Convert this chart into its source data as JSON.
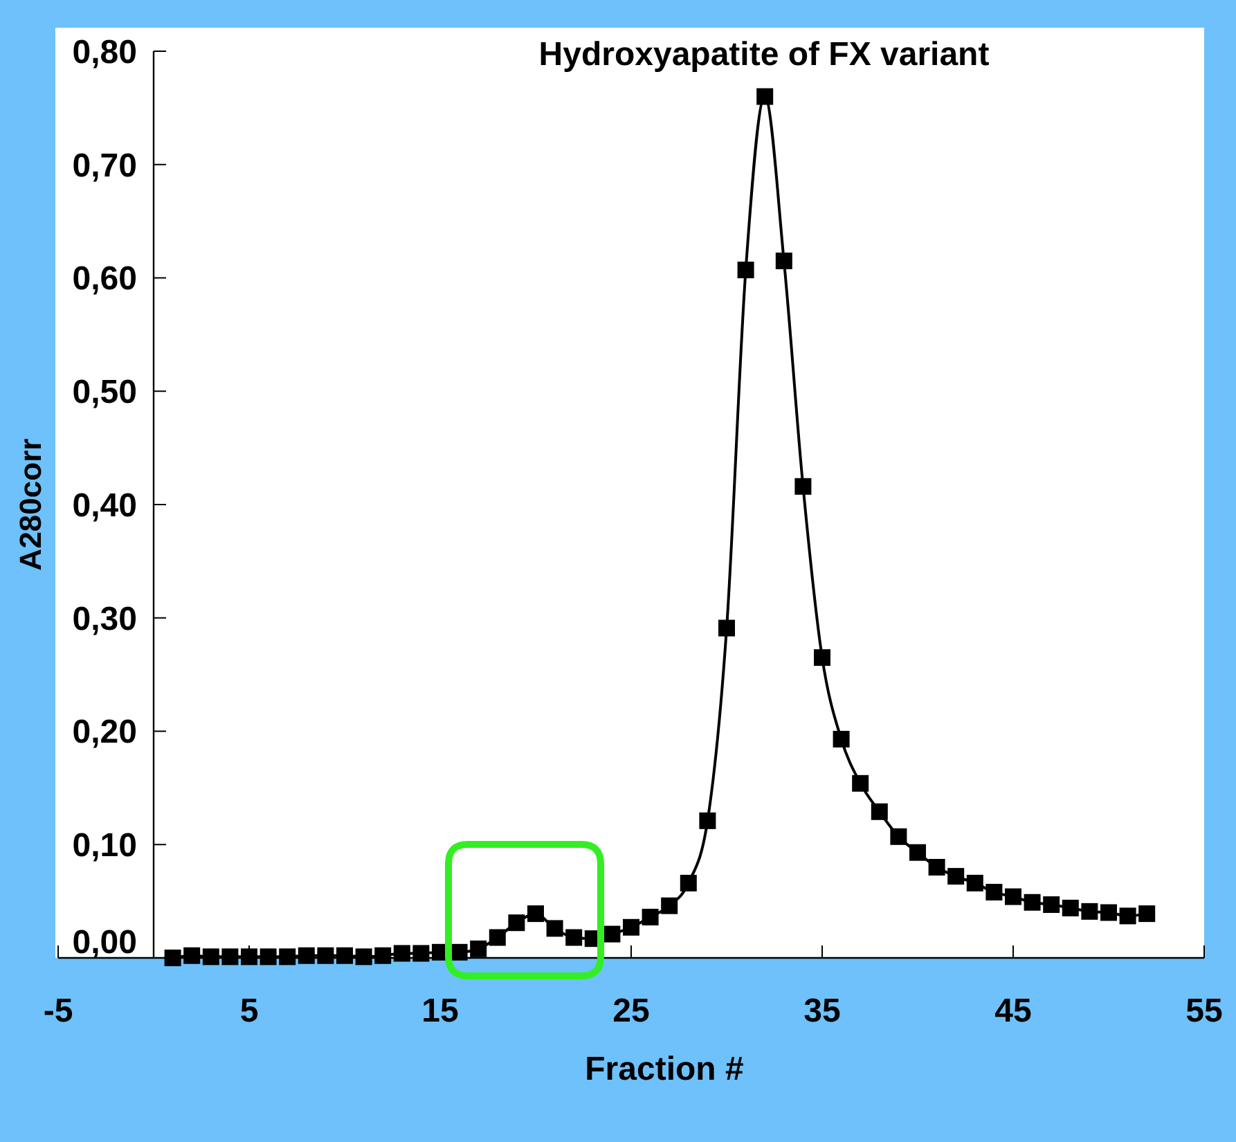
{
  "chart_data": {
    "type": "line",
    "title": "Hydroxyapatite  of FX variant",
    "xlabel": "Fraction #",
    "ylabel": "A280corr",
    "x": [
      1,
      2,
      3,
      4,
      5,
      6,
      7,
      8,
      9,
      10,
      11,
      12,
      13,
      14,
      15,
      16,
      17,
      18,
      19,
      20,
      21,
      22,
      23,
      24,
      25,
      26,
      27,
      28,
      29,
      30,
      31,
      32,
      33,
      34,
      35,
      36,
      37,
      38,
      39,
      40,
      41,
      42,
      43,
      44,
      45,
      46,
      47,
      48,
      49,
      50,
      51,
      52
    ],
    "series": [
      {
        "color": "#000000",
        "values": [
          0.0,
          0.002,
          0.001,
          0.001,
          0.001,
          0.001,
          0.001,
          0.002,
          0.002,
          0.002,
          0.001,
          0.002,
          0.004,
          0.004,
          0.005,
          0.005,
          0.008,
          0.018,
          0.031,
          0.039,
          0.026,
          0.018,
          0.017,
          0.021,
          0.027,
          0.036,
          0.046,
          0.066,
          0.121,
          0.291,
          0.607,
          0.76,
          0.615,
          0.416,
          0.265,
          0.193,
          0.154,
          0.129,
          0.107,
          0.093,
          0.08,
          0.072,
          0.066,
          0.058,
          0.054,
          0.049,
          0.047,
          0.044,
          0.041,
          0.04,
          0.037,
          0.039
        ]
      }
    ],
    "xlim": [
      -5,
      55
    ],
    "xticks": [
      {
        "value": -5,
        "label": "-5"
      },
      5,
      15,
      25,
      35,
      45,
      55
    ],
    "ylim": [
      0,
      0.8
    ],
    "yticks": [
      {
        "value": 0,
        "label": "0,00"
      },
      {
        "value": 0.1,
        "label": "0,10"
      },
      {
        "value": 0.2,
        "label": "0,20"
      },
      {
        "value": 0.3,
        "label": "0,30"
      },
      {
        "value": 0.4,
        "label": "0,40"
      },
      {
        "value": 0.5,
        "label": "0,50"
      },
      {
        "value": 0.6,
        "label": "0,60"
      },
      {
        "value": 0.7,
        "label": "0,70"
      },
      {
        "value": 0.8,
        "label": "0,80"
      }
    ],
    "grid": false,
    "marker": "square",
    "line_style": "solid"
  }
}
